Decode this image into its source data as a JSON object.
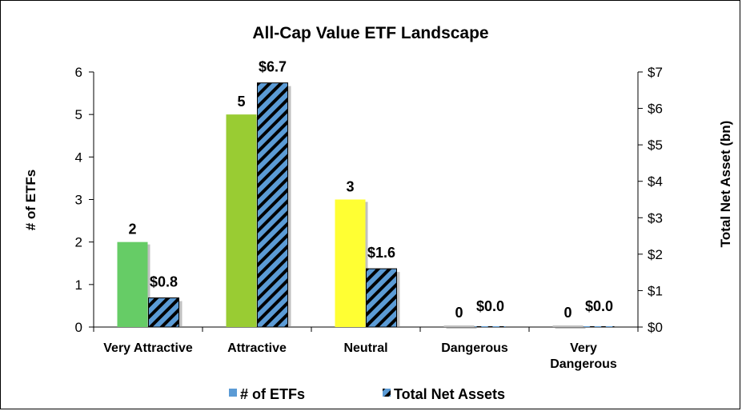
{
  "chart_data": {
    "type": "bar",
    "title": "All-Cap Value ETF Landscape",
    "categories": [
      "Very Attractive",
      "Attractive",
      "Neutral",
      "Dangerous",
      "Very Dangerous"
    ],
    "category_lines": [
      [
        "Very Attractive"
      ],
      [
        "Attractive"
      ],
      [
        "Neutral"
      ],
      [
        "Dangerous"
      ],
      [
        "Very",
        "Dangerous"
      ]
    ],
    "series": [
      {
        "name": "# of ETFs",
        "axis": "left",
        "values": [
          2,
          5,
          3,
          0,
          0
        ],
        "labels": [
          "2",
          "5",
          "3",
          "0",
          "0"
        ],
        "colors": [
          "#66cc66",
          "#99cc33",
          "#ffff33",
          "#c0c0c0",
          "#c0c0c0"
        ]
      },
      {
        "name": "Total Net Assets",
        "axis": "right",
        "values": [
          0.8,
          6.7,
          1.6,
          0.0,
          0.0
        ],
        "labels": [
          "$0.8",
          "$6.7",
          "$1.6",
          "$0.0",
          "$0.0"
        ],
        "color": "#5b9bd5",
        "stripe_color": "#000000"
      }
    ],
    "ylabel": "# of ETFs",
    "ylim": [
      0,
      6
    ],
    "yticks": [
      "0",
      "1",
      "2",
      "3",
      "4",
      "5",
      "6"
    ],
    "y2label": "Total Net Asset (bn)",
    "y2lim": [
      0,
      7
    ],
    "y2ticks": [
      "$0",
      "$1",
      "$2",
      "$3",
      "$4",
      "$5",
      "$6",
      "$7"
    ],
    "grid": false,
    "legend_position": "bottom",
    "legend_swatch_color": "#5b9bd5"
  }
}
